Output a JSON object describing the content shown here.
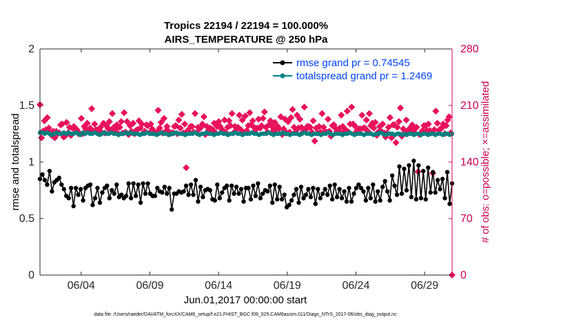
{
  "chart_data": {
    "type": "line",
    "title_line1": "Tropics 22194 / 22194 = 100.000%",
    "title_line2": "AIRS_TEMPERATURE @ 250 hPa",
    "ylabel_left": "rmse and totalspread",
    "ylabel_right": "# of obs: o=possible; ×=assimilated",
    "xlabel": "Jun.01,2017 00:00:00 start",
    "footnote": "data file: /Users/raeder/DAI/ATM_forcXX/CAM6_setup/f.e21.FHIST_BGC.f09_025.CAM6assim.011/Diags_NTrS_2017-06/obs_diag_output.nc",
    "x_ticks": [
      "06/04",
      "06/09",
      "06/14",
      "06/19",
      "06/24",
      "06/29"
    ],
    "x_tick_days": [
      4,
      9,
      14,
      19,
      24,
      29
    ],
    "xlim": [
      1.0,
      31.0
    ],
    "ylim_left": [
      0,
      2
    ],
    "y_ticks_left": [
      "0",
      "0.5",
      "1",
      "1.5",
      "2"
    ],
    "ylim_right": [
      0,
      280
    ],
    "y_ticks_right": [
      "0",
      "70",
      "140",
      "210",
      "280"
    ],
    "legend": [
      {
        "label": "rmse grand pr = 0.74545",
        "color": "#000000"
      },
      {
        "label": "totalspread grand pr = 1.2469",
        "color": "#008080"
      }
    ],
    "colors": {
      "rmse": "#000000",
      "spread": "#008080",
      "obs": "#e8125c",
      "right_axis": "#cc0055"
    },
    "rmse": [
      0.85,
      0.89,
      0.84,
      0.8,
      0.92,
      0.74,
      0.82,
      0.84,
      0.86,
      0.8,
      0.76,
      0.7,
      0.68,
      0.77,
      0.61,
      0.77,
      0.71,
      0.76,
      0.66,
      0.77,
      0.79,
      0.8,
      0.62,
      0.68,
      0.77,
      0.64,
      0.73,
      0.77,
      0.79,
      0.68,
      0.75,
      0.72,
      0.8,
      0.69,
      0.71,
      0.68,
      0.7,
      0.81,
      0.68,
      0.81,
      0.7,
      0.8,
      0.64,
      0.81,
      0.72,
      0.81,
      0.72,
      0.7,
      0.7,
      0.77,
      0.74,
      0.73,
      0.78,
      0.72,
      0.77,
      0.58,
      0.72,
      0.72,
      0.74,
      0.73,
      0.74,
      0.79,
      0.71,
      0.8,
      0.71,
      0.84,
      0.65,
      0.78,
      0.69,
      0.75,
      0.76,
      0.75,
      0.67,
      0.66,
      0.8,
      0.68,
      0.73,
      0.77,
      0.79,
      0.66,
      0.79,
      0.72,
      0.78,
      0.72,
      0.76,
      0.65,
      0.77,
      0.77,
      0.67,
      0.79,
      0.7,
      0.81,
      0.68,
      0.72,
      0.75,
      0.74,
      0.79,
      0.64,
      0.8,
      0.67,
      0.78,
      0.67,
      0.71,
      0.6,
      0.62,
      0.66,
      0.71,
      0.76,
      0.64,
      0.78,
      0.68,
      0.71,
      0.76,
      0.69,
      0.77,
      0.63,
      0.76,
      0.68,
      0.72,
      0.76,
      0.71,
      0.79,
      0.67,
      0.8,
      0.69,
      0.76,
      0.68,
      0.74,
      0.65,
      0.77,
      0.65,
      0.72,
      0.77,
      0.8,
      0.77,
      0.74,
      0.66,
      0.77,
      0.68,
      0.8,
      0.65,
      0.74,
      0.66,
      0.78,
      0.83,
      0.74,
      0.66,
      0.88,
      0.79,
      0.71,
      0.96,
      0.72,
      0.94,
      0.75,
      0.97,
      0.69,
      1.01,
      0.67,
      0.97,
      0.68,
      0.92,
      0.67,
      0.95,
      0.73,
      0.91,
      0.73,
      0.84,
      0.76,
      0.85,
      0.68,
      0.91,
      0.63,
      0.81
    ],
    "spread": [
      1.26,
      1.26,
      1.25,
      1.26,
      1.25,
      1.24,
      1.25,
      1.26,
      1.25,
      1.25,
      1.26,
      1.25,
      1.26,
      1.25,
      1.25,
      1.26,
      1.25,
      1.24,
      1.26,
      1.25,
      1.26,
      1.25,
      1.25,
      1.26,
      1.25,
      1.24,
      1.25,
      1.26,
      1.25,
      1.25,
      1.26,
      1.25,
      1.25,
      1.24,
      1.25,
      1.25,
      1.26,
      1.25,
      1.26,
      1.25,
      1.25,
      1.25,
      1.24,
      1.25,
      1.25,
      1.26,
      1.25,
      1.25,
      1.25,
      1.24,
      1.25,
      1.26,
      1.25,
      1.25,
      1.24,
      1.25,
      1.25,
      1.26,
      1.25,
      1.25,
      1.25,
      1.24,
      1.25,
      1.25,
      1.25,
      1.26,
      1.25,
      1.24,
      1.25,
      1.25,
      1.26,
      1.25,
      1.25,
      1.24,
      1.25,
      1.25,
      1.26,
      1.25,
      1.25,
      1.24,
      1.25,
      1.25,
      1.26,
      1.25,
      1.25,
      1.24,
      1.25,
      1.25,
      1.25,
      1.26,
      1.25,
      1.25,
      1.24,
      1.25,
      1.25,
      1.25,
      1.26,
      1.25,
      1.24,
      1.25,
      1.25,
      1.25,
      1.26,
      1.25,
      1.25,
      1.24,
      1.25,
      1.25,
      1.25,
      1.24,
      1.25,
      1.26,
      1.25,
      1.25,
      1.24,
      1.25,
      1.25,
      1.25,
      1.24,
      1.25,
      1.25,
      1.26,
      1.25,
      1.24,
      1.25,
      1.25,
      1.25,
      1.24,
      1.25,
      1.25,
      1.26,
      1.25,
      1.24,
      1.25,
      1.25,
      1.25,
      1.24,
      1.25,
      1.25,
      1.25,
      1.24,
      1.25,
      1.25,
      1.26,
      1.25,
      1.24,
      1.25,
      1.25,
      1.25,
      1.24,
      1.25,
      1.25,
      1.24,
      1.25,
      1.24,
      1.25,
      1.25,
      1.24,
      1.25,
      1.25,
      1.24,
      1.25,
      1.25,
      1.24,
      1.25,
      1.25,
      1.24,
      1.25,
      1.25,
      1.24,
      1.25,
      1.25,
      1.24,
      1.25
    ],
    "obs": [
      211,
      170,
      178,
      191,
      180,
      195,
      182,
      176,
      173,
      178,
      170,
      178,
      175,
      176,
      186,
      187,
      171,
      172,
      189,
      176,
      183,
      173,
      182,
      184,
      180,
      180,
      175,
      175,
      194,
      175,
      184,
      181,
      188,
      178,
      182,
      206,
      178,
      187,
      180,
      177,
      180,
      183,
      176,
      188,
      176,
      185,
      182,
      190,
      178,
      200,
      183,
      180,
      186,
      175,
      183,
      190,
      176,
      201,
      177,
      190,
      174,
      185,
      178,
      188,
      175,
      179,
      180,
      191,
      182,
      187,
      176,
      178,
      186,
      185,
      176,
      187,
      181,
      176,
      176,
      177,
      204,
      182,
      189,
      176,
      194,
      178,
      184,
      178,
      175,
      176,
      176,
      184,
      185,
      175,
      192,
      182,
      199,
      176,
      187,
      133,
      179,
      177,
      184,
      184,
      177,
      200,
      176,
      183,
      181,
      183,
      187,
      196,
      174,
      184,
      179,
      182,
      181,
      180,
      188,
      176,
      184,
      190,
      184,
      180,
      179,
      192,
      176,
      183,
      191,
      185,
      200,
      176,
      184,
      180,
      183,
      198,
      180,
      192,
      176,
      197,
      179,
      185,
      201,
      186,
      191,
      183,
      180,
      182,
      193,
      182,
      185,
      194,
      202,
      183,
      177,
      186,
      191,
      184,
      179,
      189,
      181,
      184,
      181,
      196,
      174,
      181,
      193,
      176,
      190,
      177,
      195,
      205,
      183,
      177,
      198,
      182,
      193,
      183,
      177,
      208,
      180,
      184,
      184,
      183,
      177,
      191,
      166,
      182,
      176,
      184,
      177,
      200,
      183,
      177,
      177,
      193,
      178,
      172,
      185,
      186,
      182,
      178,
      179,
      182,
      198,
      184,
      178,
      180,
      203,
      177,
      187,
      208,
      187,
      185,
      177,
      180,
      181,
      181,
      198,
      182,
      182,
      192,
      178,
      200,
      185,
      188,
      182,
      189,
      173,
      177,
      184,
      178,
      187,
      176,
      171,
      176,
      183,
      195,
      170,
      186,
      186,
      164,
      183,
      190,
      207,
      172,
      181,
      178,
      192,
      179,
      179,
      183,
      186,
      179,
      181,
      183,
      128,
      174,
      176,
      179,
      185,
      185,
      179,
      187,
      179,
      176,
      126,
      180,
      203,
      188,
      179,
      181,
      182,
      187,
      175,
      185,
      192,
      196,
      176,
      0
    ]
  }
}
